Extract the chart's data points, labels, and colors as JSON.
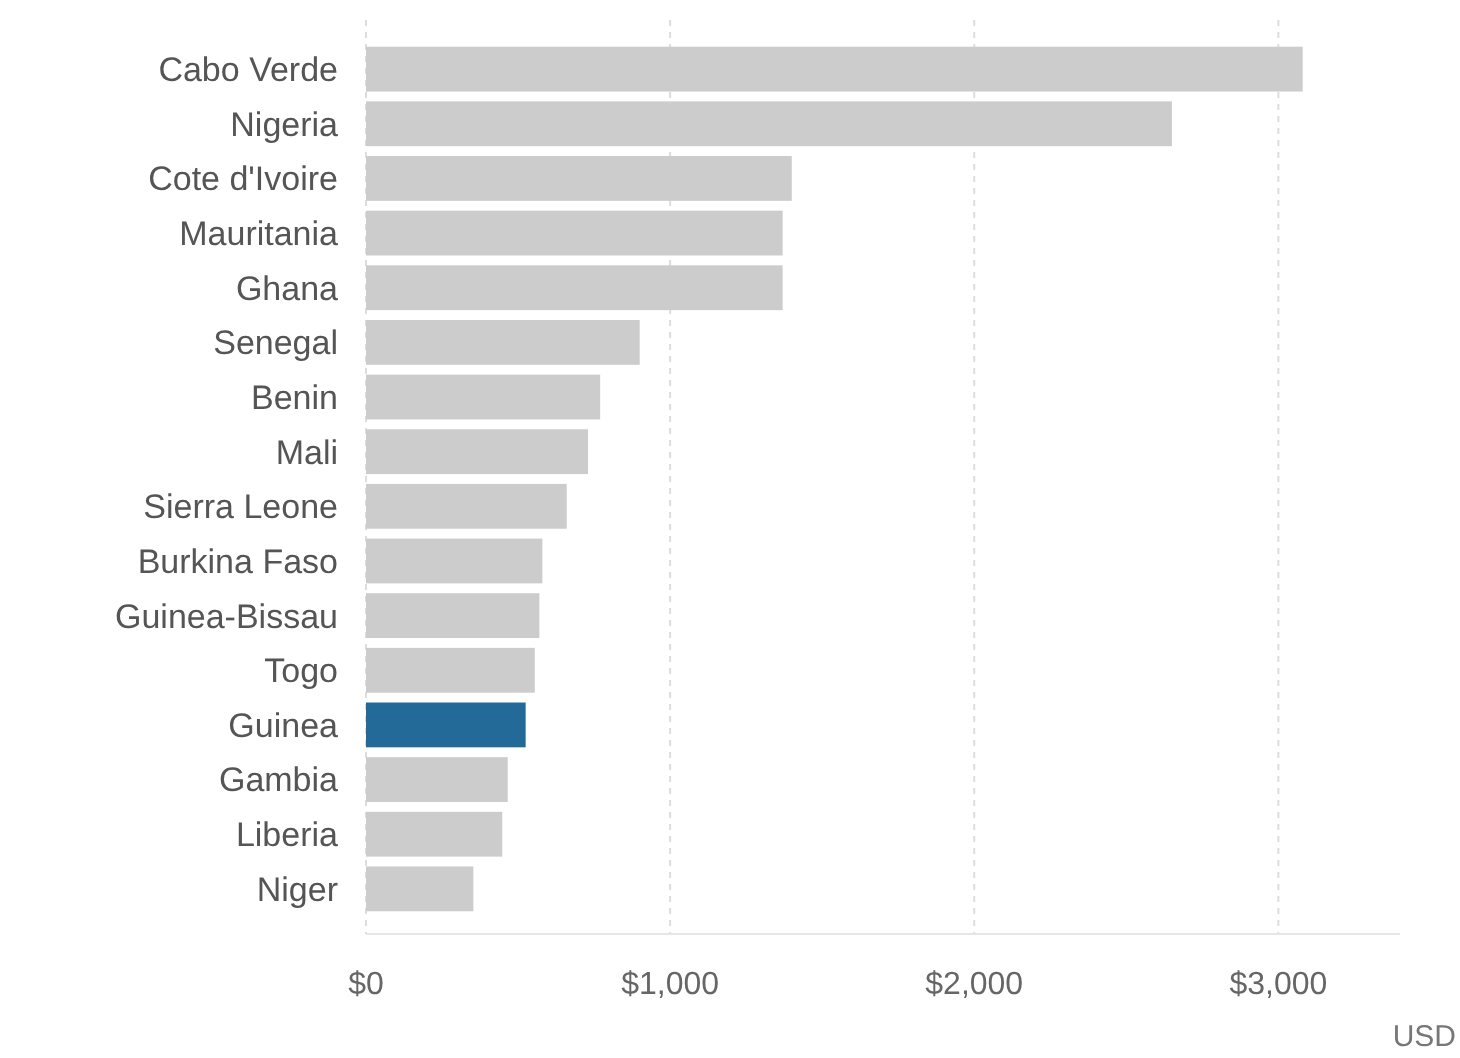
{
  "chart_data": {
    "type": "bar",
    "orientation": "horizontal",
    "xlabel": "USD",
    "categories": [
      "Cabo Verde",
      "Nigeria",
      "Cote d'Ivoire",
      "Mauritania",
      "Ghana",
      "Senegal",
      "Benin",
      "Mali",
      "Sierra Leone",
      "Burkina Faso",
      "Guinea-Bissau",
      "Togo",
      "Guinea",
      "Gambia",
      "Liberia",
      "Niger"
    ],
    "values": [
      3080,
      2650,
      1400,
      1370,
      1370,
      900,
      770,
      730,
      660,
      580,
      570,
      555,
      525,
      466,
      448,
      353
    ],
    "colors": [
      "#cccccc",
      "#cccccc",
      "#cccccc",
      "#cccccc",
      "#cccccc",
      "#cccccc",
      "#cccccc",
      "#cccccc",
      "#cccccc",
      "#cccccc",
      "#cccccc",
      "#cccccc",
      "#236a98",
      "#cccccc",
      "#cccccc",
      "#cccccc"
    ],
    "xlim": [
      0,
      3400
    ],
    "xticks": [
      {
        "value": 0,
        "label": "$0"
      },
      {
        "value": 1000,
        "label": "$1,000"
      },
      {
        "value": 2000,
        "label": "$2,000"
      },
      {
        "value": 3000,
        "label": "$3,000"
      }
    ],
    "grid": "x"
  }
}
